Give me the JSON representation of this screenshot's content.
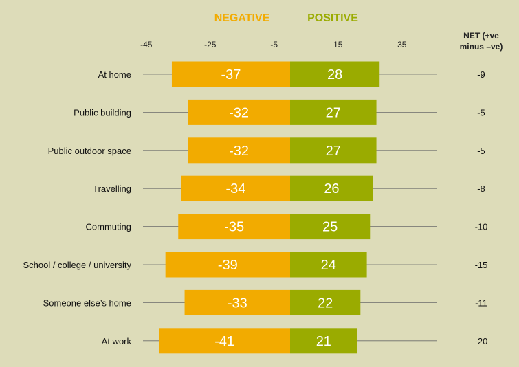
{
  "chart_data": {
    "type": "bar",
    "orientation": "horizontal-diverging",
    "categories": [
      "At home",
      "Public building",
      "Public outdoor space",
      "Travelling",
      "Commuting",
      "School / college / university",
      "Someone else’s home",
      "At work"
    ],
    "series": [
      {
        "name": "NEGATIVE",
        "color": "#f2ab00",
        "values": [
          -37,
          -32,
          -32,
          -34,
          -35,
          -39,
          -33,
          -41
        ]
      },
      {
        "name": "POSITIVE",
        "color": "#9aab00",
        "values": [
          28,
          27,
          27,
          26,
          25,
          24,
          22,
          21
        ]
      }
    ],
    "net": {
      "label_line1": "NET (+ve",
      "label_line2": "minus –ve)",
      "values": [
        "-9",
        "-5",
        "-5",
        "-8",
        "-10",
        "-15",
        "-11",
        "-20"
      ]
    },
    "xticks": [
      -45,
      -25,
      -5,
      15,
      35
    ],
    "xlim": [
      -54,
      47
    ],
    "legend_position": "top",
    "grid": false
  }
}
